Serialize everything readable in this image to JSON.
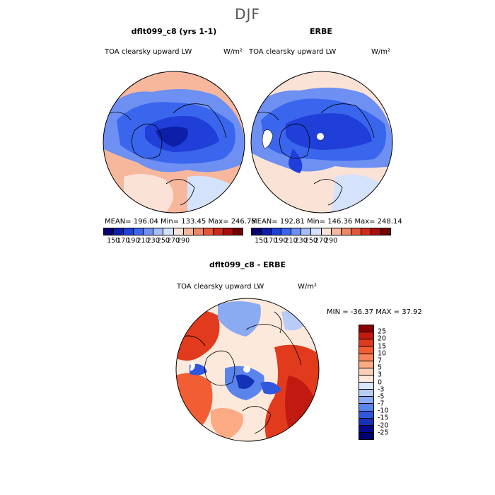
{
  "season": "DJF",
  "left": {
    "title": "dflt099_c8 (yrs 1-1)",
    "variable": "TOA clearsky upward LW",
    "units": "W/m²",
    "stats": "MEAN= 196.04   Min= 133.45   Max= 246.75"
  },
  "right": {
    "title": "ERBE",
    "variable": "TOA clearsky upward LW",
    "units": "W/m²",
    "stats": "MEAN= 192.81   Min= 146.36   Max= 248.14"
  },
  "bottom": {
    "title": "dflt099_c8 - ERBE",
    "variable": "TOA clearsky upward LW",
    "units": "W/m²",
    "minmax": "MIN = -36.37 MAX =  37.92"
  },
  "colorbar_top": {
    "labels": [
      "150",
      "170",
      "190",
      "210",
      "230",
      "250",
      "270",
      "290"
    ],
    "colors": [
      "#08006e",
      "#0d1fa8",
      "#1f3fd8",
      "#3a66ee",
      "#6d90f2",
      "#a6bdf6",
      "#d5e2fb",
      "#fbe2d6",
      "#f7b79c",
      "#ef8664",
      "#e4553a",
      "#cd2b1b",
      "#a80e0c",
      "#730000"
    ]
  },
  "colorbar_diff": {
    "labels": [
      "25",
      "20",
      "15",
      "10",
      "7",
      "5",
      "3",
      "0",
      "-3",
      "-5",
      "-7",
      "-10",
      "-15",
      "-20",
      "-25"
    ],
    "colors": [
      "#8a0000",
      "#c21a10",
      "#e23a1c",
      "#f25d33",
      "#f7845a",
      "#fbaa84",
      "#fdcfb6",
      "#fde9dc",
      "#dde7fb",
      "#b9ccf7",
      "#8aaaf2",
      "#5a84ec",
      "#2f58dd",
      "#1432b8",
      "#060a8a",
      "#00006e"
    ]
  }
}
